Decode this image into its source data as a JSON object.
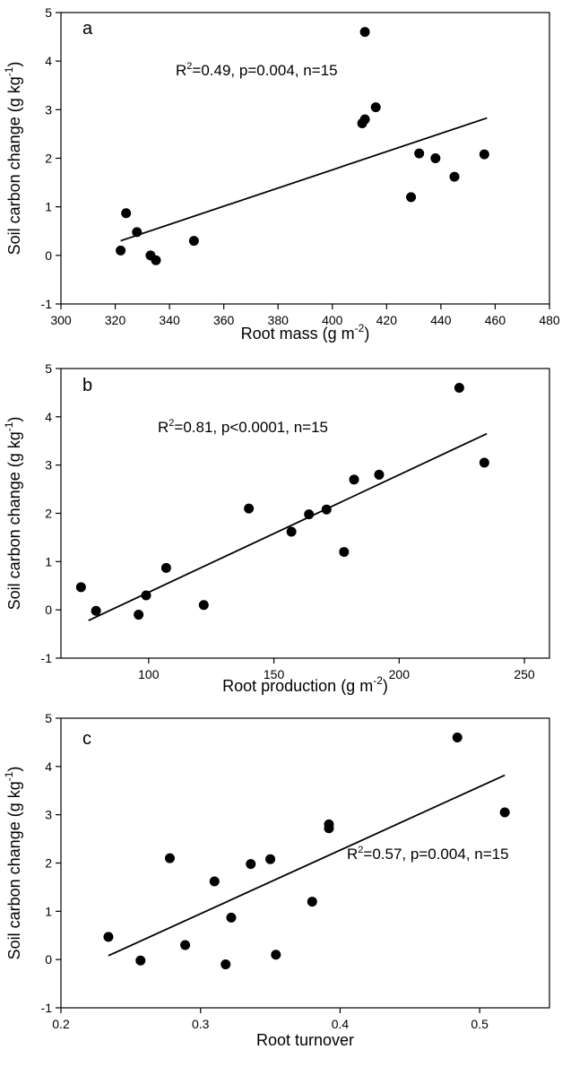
{
  "chart_data": [
    {
      "type": "scatter",
      "panel": "a",
      "annotation": "R2=0.49, p=0.004, n=15",
      "annotation_base": "R",
      "annotation_sup": "2",
      "annotation_rest": "=0.49, p=0.004, n=15",
      "xlabel": "Root mass (g m-2)",
      "xlabel_base": "Root mass (g m",
      "xlabel_sup": "-2",
      "xlabel_close": ")",
      "ylabel": "Soil carbon change (g kg-1)",
      "ylabel_base": "Soil carbon change (g kg",
      "ylabel_sup": "-1",
      "ylabel_close": ")",
      "xlim": [
        300,
        480
      ],
      "ylim": [
        -1,
        5
      ],
      "xticks": [
        300,
        320,
        340,
        360,
        380,
        400,
        420,
        440,
        460,
        480
      ],
      "yticks": [
        -1,
        0,
        1,
        2,
        3,
        4,
        5
      ],
      "x": [
        322,
        324,
        328,
        333,
        335,
        349,
        411,
        412,
        412,
        416,
        429,
        432,
        438,
        445,
        456
      ],
      "y": [
        0.1,
        0.87,
        0.48,
        0.0,
        -0.1,
        0.3,
        2.72,
        2.8,
        4.6,
        3.05,
        1.2,
        2.1,
        2.0,
        1.62,
        2.08
      ],
      "fit": {
        "x": [
          322,
          457
        ],
        "y": [
          0.3,
          2.83
        ]
      }
    },
    {
      "type": "scatter",
      "panel": "b",
      "annotation": "R2=0.81, p<0.0001, n=15",
      "annotation_base": "R",
      "annotation_sup": "2",
      "annotation_rest": "=0.81, p<0.0001, n=15",
      "xlabel": "Root production (g m-2)",
      "xlabel_base": "Root production (g m",
      "xlabel_sup": "-2",
      "xlabel_close": ")",
      "ylabel": "Soil carbon change (g kg-1)",
      "ylabel_base": "Soil carbon change (g kg",
      "ylabel_sup": "-1",
      "ylabel_close": ")",
      "xlim": [
        65,
        260
      ],
      "ylim": [
        -1,
        5
      ],
      "xticks": [
        100,
        150,
        200,
        250
      ],
      "yticks": [
        -1,
        0,
        1,
        2,
        3,
        4,
        5
      ],
      "x": [
        73,
        79,
        96,
        99,
        107,
        122,
        140,
        157,
        164,
        171,
        178,
        182,
        192,
        224,
        234
      ],
      "y": [
        0.47,
        -0.02,
        -0.1,
        0.3,
        0.87,
        0.1,
        2.1,
        1.62,
        1.98,
        2.08,
        1.2,
        2.7,
        2.8,
        4.6,
        3.05
      ],
      "fit": {
        "x": [
          76,
          235
        ],
        "y": [
          -0.22,
          3.65
        ]
      }
    },
    {
      "type": "scatter",
      "panel": "c",
      "annotation": "R2=0.57, p=0.004, n=15",
      "annotation_base": "R",
      "annotation_sup": "2",
      "annotation_rest": "=0.57, p=0.004, n=15",
      "xlabel": "Root turnover",
      "ylabel": "Soil carbon change (g kg-1)",
      "ylabel_base": "Soil carbon change (g kg",
      "ylabel_sup": "-1",
      "ylabel_close": ")",
      "xlim": [
        0.2,
        0.55
      ],
      "ylim": [
        -1,
        5
      ],
      "xticks": [
        0.2,
        0.3,
        0.4,
        0.5
      ],
      "xtick_labels": [
        "0.2",
        "0.3",
        "0.4",
        "0.5"
      ],
      "yticks": [
        -1,
        0,
        1,
        2,
        3,
        4,
        5
      ],
      "x": [
        0.234,
        0.257,
        0.278,
        0.289,
        0.31,
        0.318,
        0.322,
        0.336,
        0.35,
        0.354,
        0.38,
        0.392,
        0.392,
        0.484,
        0.518
      ],
      "y": [
        0.47,
        -0.02,
        2.1,
        0.3,
        1.62,
        -0.1,
        0.87,
        1.98,
        2.08,
        0.1,
        1.2,
        2.8,
        2.72,
        4.6,
        3.05
      ],
      "fit": {
        "x": [
          0.234,
          0.518
        ],
        "y": [
          0.08,
          3.82
        ]
      }
    }
  ]
}
